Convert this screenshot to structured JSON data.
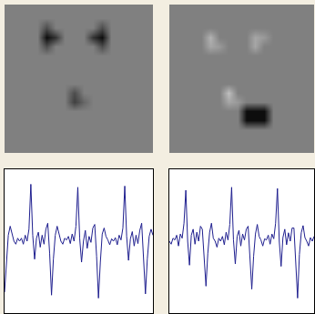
{
  "chart_data": [
    {
      "type": "heatmap",
      "color": "gray",
      "zlim": [
        0,
        1
      ],
      "xlim": [
        -0.5,
        15.5
      ],
      "ylim": [
        15.5,
        -0.5
      ],
      "tick_labels": false,
      "cells": [
        [
          0.5,
          0.5,
          0.5,
          0.5,
          0.5,
          0.5,
          0.5,
          0.5,
          0.5,
          0.5,
          0.5,
          0.5,
          0.5,
          0.5,
          0.5,
          0.5
        ],
        [
          0.5,
          0.5,
          0.5,
          0.5,
          0.5,
          0.5,
          0.5,
          0.5,
          0.5,
          0.5,
          0.5,
          0.5,
          0.5,
          0.5,
          0.5,
          0.5
        ],
        [
          0.5,
          0.5,
          0.5,
          0.5,
          0.3,
          0.5,
          0.5,
          0.5,
          0.5,
          0.5,
          0.3,
          0.5,
          0.5,
          0.5,
          0.5,
          0.5
        ],
        [
          0.5,
          0.5,
          0.5,
          0.5,
          0.05,
          0.2,
          0.5,
          0.5,
          0.5,
          0.2,
          0.05,
          0.5,
          0.5,
          0.5,
          0.5,
          0.5
        ],
        [
          0.5,
          0.5,
          0.5,
          0.5,
          0.3,
          0.5,
          0.5,
          0.5,
          0.5,
          0.5,
          0.3,
          0.5,
          0.5,
          0.5,
          0.5,
          0.5
        ],
        [
          0.5,
          0.5,
          0.5,
          0.5,
          0.5,
          0.5,
          0.5,
          0.5,
          0.5,
          0.5,
          0.5,
          0.5,
          0.5,
          0.5,
          0.5,
          0.5
        ],
        [
          0.5,
          0.5,
          0.5,
          0.5,
          0.5,
          0.5,
          0.5,
          0.5,
          0.5,
          0.5,
          0.5,
          0.5,
          0.5,
          0.5,
          0.5,
          0.5
        ],
        [
          0.5,
          0.5,
          0.5,
          0.5,
          0.5,
          0.5,
          0.5,
          0.5,
          0.5,
          0.5,
          0.5,
          0.5,
          0.5,
          0.5,
          0.5,
          0.5
        ],
        [
          0.5,
          0.5,
          0.5,
          0.5,
          0.5,
          0.5,
          0.5,
          0.5,
          0.5,
          0.5,
          0.5,
          0.5,
          0.5,
          0.5,
          0.5,
          0.5
        ],
        [
          0.5,
          0.5,
          0.5,
          0.5,
          0.5,
          0.5,
          0.5,
          0.3,
          0.5,
          0.5,
          0.5,
          0.5,
          0.5,
          0.5,
          0.5,
          0.5
        ],
        [
          0.5,
          0.5,
          0.5,
          0.5,
          0.5,
          0.5,
          0.5,
          0.25,
          0.4,
          0.5,
          0.5,
          0.5,
          0.5,
          0.5,
          0.5,
          0.5
        ],
        [
          0.5,
          0.5,
          0.5,
          0.5,
          0.5,
          0.5,
          0.5,
          0.5,
          0.5,
          0.5,
          0.5,
          0.5,
          0.5,
          0.5,
          0.5,
          0.5
        ],
        [
          0.5,
          0.5,
          0.5,
          0.5,
          0.5,
          0.5,
          0.5,
          0.5,
          0.5,
          0.5,
          0.5,
          0.5,
          0.5,
          0.5,
          0.5,
          0.5
        ],
        [
          0.5,
          0.5,
          0.5,
          0.5,
          0.5,
          0.5,
          0.5,
          0.5,
          0.5,
          0.5,
          0.5,
          0.5,
          0.5,
          0.5,
          0.5,
          0.5
        ],
        [
          0.5,
          0.5,
          0.5,
          0.5,
          0.5,
          0.5,
          0.5,
          0.5,
          0.5,
          0.5,
          0.5,
          0.5,
          0.5,
          0.5,
          0.5,
          0.5
        ],
        [
          0.5,
          0.5,
          0.5,
          0.5,
          0.5,
          0.5,
          0.5,
          0.5,
          0.5,
          0.5,
          0.5,
          0.5,
          0.5,
          0.5,
          0.5,
          0.5
        ]
      ]
    },
    {
      "type": "heatmap",
      "color": "gray",
      "zlim": [
        0,
        1
      ],
      "xlim": [
        -0.5,
        15.5
      ],
      "ylim": [
        15.5,
        -0.5
      ],
      "tick_labels": false,
      "cells": [
        [
          0.5,
          0.5,
          0.5,
          0.5,
          0.5,
          0.5,
          0.5,
          0.5,
          0.5,
          0.5,
          0.5,
          0.5,
          0.5,
          0.5,
          0.5,
          0.5
        ],
        [
          0.5,
          0.5,
          0.5,
          0.5,
          0.5,
          0.5,
          0.5,
          0.5,
          0.5,
          0.5,
          0.5,
          0.5,
          0.5,
          0.5,
          0.5,
          0.5
        ],
        [
          0.5,
          0.5,
          0.5,
          0.5,
          0.5,
          0.5,
          0.5,
          0.5,
          0.5,
          0.5,
          0.5,
          0.5,
          0.5,
          0.5,
          0.5,
          0.5
        ],
        [
          0.5,
          0.5,
          0.5,
          0.5,
          0.7,
          0.5,
          0.5,
          0.5,
          0.5,
          0.65,
          0.6,
          0.5,
          0.5,
          0.5,
          0.5,
          0.5
        ],
        [
          0.5,
          0.5,
          0.5,
          0.5,
          0.65,
          0.6,
          0.5,
          0.5,
          0.5,
          0.65,
          0.5,
          0.5,
          0.5,
          0.5,
          0.5,
          0.5
        ],
        [
          0.5,
          0.5,
          0.5,
          0.5,
          0.5,
          0.5,
          0.5,
          0.5,
          0.5,
          0.5,
          0.5,
          0.5,
          0.5,
          0.5,
          0.5,
          0.5
        ],
        [
          0.5,
          0.5,
          0.5,
          0.5,
          0.5,
          0.5,
          0.5,
          0.5,
          0.5,
          0.5,
          0.5,
          0.5,
          0.5,
          0.5,
          0.5,
          0.5
        ],
        [
          0.5,
          0.5,
          0.5,
          0.5,
          0.5,
          0.5,
          0.5,
          0.5,
          0.5,
          0.5,
          0.5,
          0.5,
          0.5,
          0.5,
          0.5,
          0.5
        ],
        [
          0.5,
          0.5,
          0.5,
          0.5,
          0.5,
          0.5,
          0.5,
          0.5,
          0.5,
          0.5,
          0.5,
          0.5,
          0.5,
          0.5,
          0.5,
          0.5
        ],
        [
          0.5,
          0.5,
          0.5,
          0.5,
          0.5,
          0.5,
          0.75,
          0.5,
          0.5,
          0.5,
          0.5,
          0.5,
          0.5,
          0.5,
          0.5,
          0.5
        ],
        [
          0.5,
          0.5,
          0.5,
          0.5,
          0.5,
          0.5,
          0.65,
          0.6,
          0.5,
          0.5,
          0.5,
          0.5,
          0.5,
          0.5,
          0.5,
          0.5
        ],
        [
          0.5,
          0.5,
          0.5,
          0.5,
          0.5,
          0.5,
          0.5,
          0.5,
          0.05,
          0.05,
          0.05,
          0.5,
          0.5,
          0.5,
          0.5,
          0.5
        ],
        [
          0.5,
          0.5,
          0.5,
          0.5,
          0.5,
          0.5,
          0.5,
          0.5,
          0.05,
          0.05,
          0.05,
          0.5,
          0.5,
          0.5,
          0.5,
          0.5
        ],
        [
          0.5,
          0.5,
          0.5,
          0.5,
          0.5,
          0.5,
          0.5,
          0.5,
          0.5,
          0.5,
          0.5,
          0.5,
          0.5,
          0.5,
          0.5,
          0.5
        ],
        [
          0.5,
          0.5,
          0.5,
          0.5,
          0.5,
          0.5,
          0.5,
          0.5,
          0.5,
          0.5,
          0.5,
          0.5,
          0.5,
          0.5,
          0.5,
          0.5
        ],
        [
          0.5,
          0.5,
          0.5,
          0.5,
          0.5,
          0.5,
          0.5,
          0.5,
          0.5,
          0.5,
          0.5,
          0.5,
          0.5,
          0.5,
          0.5,
          0.5
        ]
      ]
    },
    {
      "type": "line",
      "color": "#1f1f8f",
      "xlim": [
        0,
        79
      ],
      "ylim": [
        -1.2,
        1.2
      ],
      "tick_labels": false,
      "x": [
        0,
        1,
        2,
        3,
        4,
        5,
        6,
        7,
        8,
        9,
        10,
        11,
        12,
        13,
        14,
        15,
        16,
        17,
        18,
        19,
        20,
        21,
        22,
        23,
        24,
        25,
        26,
        27,
        28,
        29,
        30,
        31,
        32,
        33,
        34,
        35,
        36,
        37,
        38,
        39,
        40,
        41,
        42,
        43,
        44,
        45,
        46,
        47,
        48,
        49,
        50,
        51,
        52,
        53,
        54,
        55,
        56,
        57,
        58,
        59,
        60,
        61,
        62,
        63,
        64,
        65,
        66,
        67,
        68,
        69,
        70,
        71,
        72,
        73,
        74,
        75,
        76,
        77,
        78,
        79
      ],
      "values": [
        -0.85,
        -0.3,
        0.1,
        0.25,
        0.1,
        0.0,
        -0.05,
        0.05,
        0.0,
        0.05,
        -0.05,
        0.1,
        0.0,
        0.2,
        0.95,
        0.1,
        -0.3,
        0.05,
        0.15,
        -0.1,
        0.1,
        -0.05,
        0.2,
        0.3,
        -0.2,
        -0.9,
        -0.3,
        0.1,
        0.25,
        0.1,
        0.0,
        -0.05,
        0.05,
        0.02,
        0.08,
        -0.04,
        0.12,
        0.0,
        0.25,
        0.9,
        0.05,
        -0.35,
        0.0,
        0.18,
        -0.12,
        0.08,
        -0.02,
        0.22,
        0.28,
        -0.25,
        -0.95,
        -0.35,
        0.12,
        0.22,
        0.08,
        0.02,
        -0.06,
        0.04,
        0.0,
        0.06,
        -0.06,
        0.1,
        0.02,
        0.22,
        0.92,
        0.08,
        -0.32,
        0.04,
        0.16,
        -0.08,
        0.1,
        -0.04,
        0.18,
        0.3,
        -0.22,
        -0.88,
        -0.3,
        0.08,
        0.2,
        0.1
      ]
    },
    {
      "type": "line",
      "color": "#1f1f8f",
      "xlim": [
        0,
        79
      ],
      "ylim": [
        -1.2,
        1.2
      ],
      "tick_labels": false,
      "x": [
        0,
        1,
        2,
        3,
        4,
        5,
        6,
        7,
        8,
        9,
        10,
        11,
        12,
        13,
        14,
        15,
        16,
        17,
        18,
        19,
        20,
        21,
        22,
        23,
        24,
        25,
        26,
        27,
        28,
        29,
        30,
        31,
        32,
        33,
        34,
        35,
        36,
        37,
        38,
        39,
        40,
        41,
        42,
        43,
        44,
        45,
        46,
        47,
        48,
        49,
        50,
        51,
        52,
        53,
        54,
        55,
        56,
        57,
        58,
        59,
        60,
        61,
        62,
        63,
        64,
        65,
        66,
        67,
        68,
        69,
        70,
        71,
        72,
        73,
        74,
        75,
        76,
        77,
        78,
        79
      ],
      "values": [
        0.0,
        -0.05,
        0.05,
        0.02,
        0.1,
        -0.08,
        0.12,
        0.05,
        0.3,
        0.85,
        0.0,
        -0.4,
        0.1,
        0.2,
        -0.05,
        0.15,
        0.0,
        0.25,
        0.2,
        -0.3,
        -0.75,
        -0.2,
        0.15,
        0.3,
        0.05,
        0.0,
        -0.1,
        0.05,
        0.0,
        0.08,
        -0.06,
        0.15,
        0.02,
        0.28,
        0.9,
        0.02,
        -0.38,
        0.08,
        0.18,
        -0.08,
        0.12,
        0.02,
        0.2,
        0.25,
        -0.28,
        -0.8,
        -0.25,
        0.12,
        0.28,
        0.08,
        0.02,
        -0.08,
        0.04,
        0.02,
        0.1,
        -0.05,
        0.12,
        0.04,
        0.3,
        0.88,
        0.0,
        -0.42,
        0.06,
        0.2,
        -0.06,
        0.14,
        0.0,
        0.22,
        0.22,
        -0.3,
        -0.95,
        -0.22,
        0.14,
        0.26,
        0.06,
        0.0,
        -0.08,
        0.06,
        0.0,
        0.08
      ]
    }
  ]
}
